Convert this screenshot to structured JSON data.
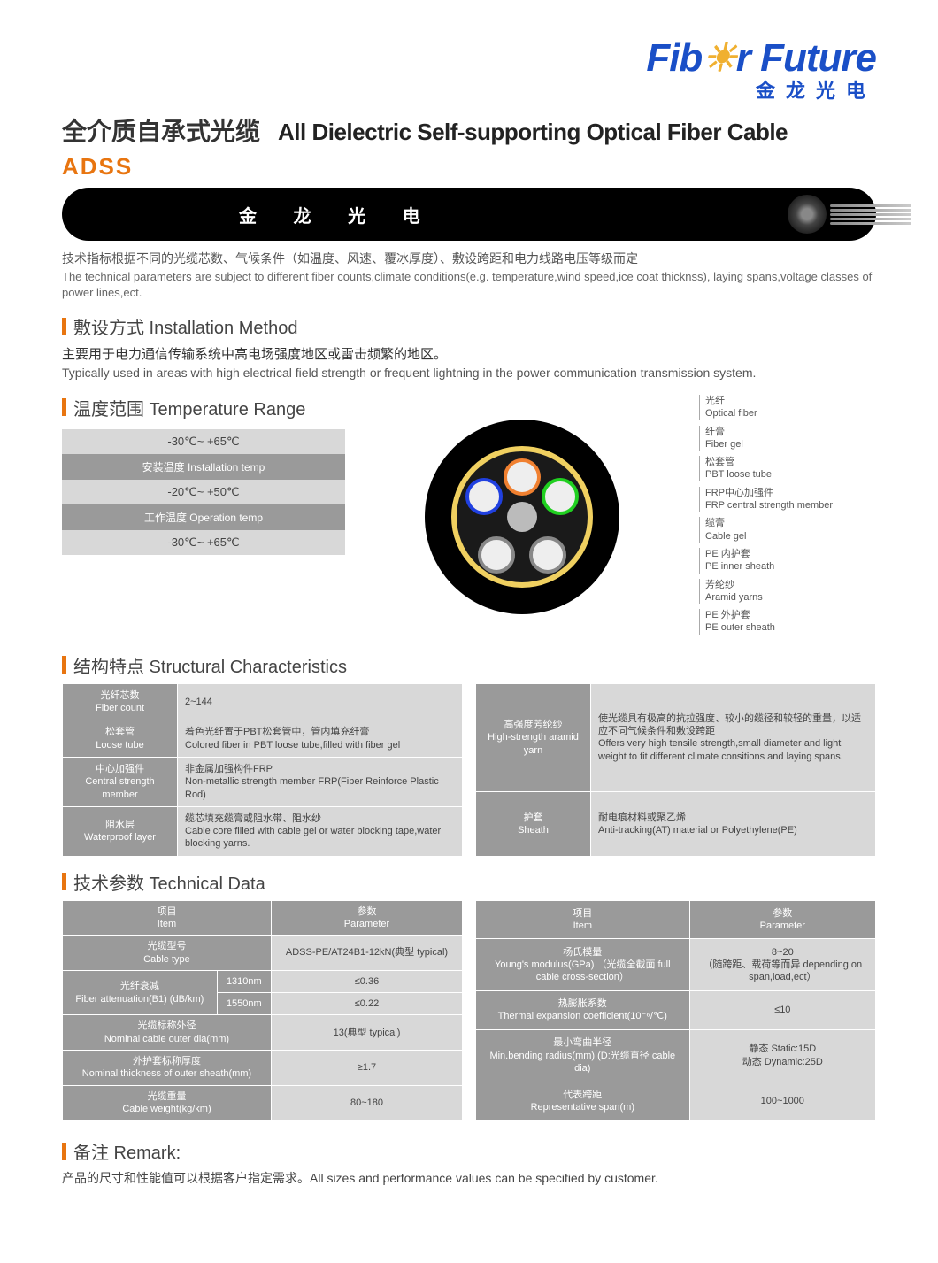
{
  "logo": {
    "fiber": "Fib",
    "e": "e",
    "r": "r",
    "future": " Future",
    "sub": "金龙光电"
  },
  "title": {
    "cn": "全介质自承式光缆",
    "en": "All Dielectric Self-supporting Optical Fiber Cable"
  },
  "adss": "ADSS",
  "cable_brand": "金 龙 光 电",
  "intro": {
    "cn": "技术指标根据不同的光缆芯数、气候条件（如温度、风速、覆冰厚度）、敷设跨距和电力线路电压等级而定",
    "en": "The technical parameters are subject to different fiber counts,climate conditions(e.g. temperature,wind speed,ice coat thicknss), laying spans,voltage classes of power lines,ect."
  },
  "install": {
    "head": "敷设方式 Installation Method",
    "cn": "主要用于电力通信传输系统中高电场强度地区或雷击频繁的地区。",
    "en": "Typically used in areas with high electrical field strength or frequent lightning in the power communication transmission system."
  },
  "temp": {
    "head": "温度范围 Temperature Range",
    "rows": [
      {
        "label": "-30℃~ +65℃",
        "is_val": true
      },
      {
        "label": "安装温度 Installation temp",
        "is_val": false
      },
      {
        "label": "-20℃~ +50℃",
        "is_val": true
      },
      {
        "label": "工作温度 Operation temp",
        "is_val": false
      },
      {
        "label": "-30℃~ +65℃",
        "is_val": true
      }
    ]
  },
  "labels": [
    {
      "cn": "光纤",
      "en": "Optical fiber"
    },
    {
      "cn": "纤膏",
      "en": "Fiber gel"
    },
    {
      "cn": "松套管",
      "en": "PBT loose tube"
    },
    {
      "cn": "FRP中心加强件",
      "en": "FRP central strength member"
    },
    {
      "cn": "缆膏",
      "en": "Cable gel"
    },
    {
      "cn": "PE 内护套",
      "en": "PE inner sheath"
    },
    {
      "cn": "芳纶纱",
      "en": "Aramid yarns"
    },
    {
      "cn": "PE 外护套",
      "en": "PE outer sheath"
    }
  ],
  "struct": {
    "head": "结构特点 Structural Characteristics",
    "left": [
      {
        "l_cn": "光纤芯数",
        "l_en": "Fiber count",
        "v": "2~144"
      },
      {
        "l_cn": "松套管",
        "l_en": "Loose tube",
        "v_cn": "着色光纤置于PBT松套管中，管内填充纤膏",
        "v_en": "Colored fiber in PBT loose tube,filled with fiber gel"
      },
      {
        "l_cn": "中心加强件",
        "l_en": "Central strength member",
        "v_cn": "非金属加强构件FRP",
        "v_en": "Non-metallic strength member FRP(Fiber Reinforce Plastic Rod)"
      },
      {
        "l_cn": "阻水层",
        "l_en": "Waterproof layer",
        "v_cn": "缆芯填充缆膏或阻水带、阻水纱",
        "v_en": "Cable core filled with cable gel or water blocking tape,water blocking yarns."
      }
    ],
    "right": [
      {
        "l_cn": "高强度芳纶纱",
        "l_en": "High-strength aramid yarn",
        "v_cn": "使光缆具有极高的抗拉强度、较小的缆径和较轻的重量，以适应不同气候条件和敷设跨距",
        "v_en": "Offers very high tensile strength,small diameter and light weight to fit different climate consitions and laying spans."
      },
      {
        "l_cn": "护套",
        "l_en": "Sheath",
        "v_cn": "耐电痕材料或聚乙烯",
        "v_en": "Anti-tracking(AT) material or Polyethylene(PE)"
      }
    ]
  },
  "tech": {
    "head": "技术参数 Technical Data",
    "col_hdr": {
      "item_cn": "项目",
      "item_en": "Item",
      "param_cn": "参数",
      "param_en": "Parameter"
    },
    "left": [
      {
        "l_cn": "光缆型号",
        "l_en": "Cable type",
        "v": "ADSS-PE/AT24B1-12kN(典型 typical)"
      },
      {
        "l_cn": "光纤衰减",
        "l_en": "Fiber attenuation(B1) (dB/km)",
        "sub": "1310nm",
        "v": "≤0.36"
      },
      {
        "sub": "1550nm",
        "v": "≤0.22"
      },
      {
        "l_cn": "光缆标称外径",
        "l_en": "Nominal cable outer dia(mm)",
        "v": "13(典型 typical)"
      },
      {
        "l_cn": "外护套标称厚度",
        "l_en": "Nominal thickness of outer sheath(mm)",
        "v": "≥1.7"
      },
      {
        "l_cn": "光缆重量",
        "l_en": "Cable weight(kg/km)",
        "v": "80~180"
      }
    ],
    "right": [
      {
        "l_cn": "杨氏模量",
        "l_en": "Young's modulus(GPa) （光缆全截面 full cable cross-section）",
        "v_cn": "8~20",
        "v_en": "（随跨距、载荷等而异 depending on span,load,ect）"
      },
      {
        "l_cn": "热膨胀系数",
        "l_en": "Thermal expansion coefficient(10⁻⁶/℃)",
        "v": "≤10"
      },
      {
        "l_cn": "最小弯曲半径",
        "l_en": "Min.bending radius(mm) (D:光缆直径 cable dia)",
        "v_cn": "静态 Static:15D",
        "v_en": "动态 Dynamic:25D"
      },
      {
        "l_cn": "代表跨距",
        "l_en": "Representative span(m)",
        "v": "100~1000"
      }
    ]
  },
  "remark": {
    "head": "备注 Remark:",
    "text": "产品的尺寸和性能值可以根据客户指定需求。All sizes and performance values can be specified by customer."
  }
}
